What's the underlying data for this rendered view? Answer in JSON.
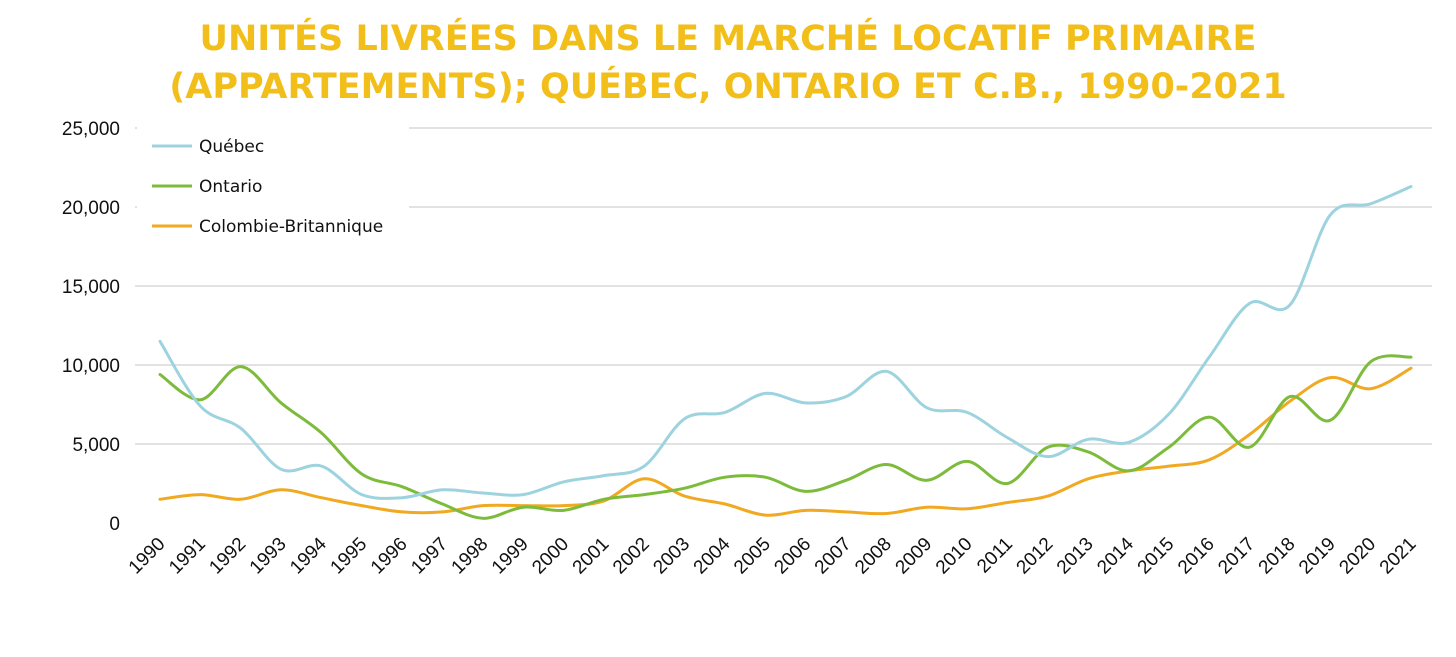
{
  "chart_data": {
    "type": "line",
    "title_line1": "UNITÉS LIVRÉES DANS LE MARCHÉ LOCATIF PRIMAIRE",
    "title_line2": "(APPARTEMENTS); QUÉBEC, ONTARIO ET C.B., 1990-2021",
    "xlabel": "",
    "ylabel": "",
    "ylim": [
      0,
      25000
    ],
    "yticks": [
      "0",
      "5,000",
      "10,000",
      "15,000",
      "20,000",
      "25,000"
    ],
    "ytick_values": [
      0,
      5000,
      10000,
      15000,
      20000,
      25000
    ],
    "grid": "horizontal",
    "legend_position": "top-left",
    "categories": [
      "1990",
      "1991",
      "1992",
      "1993",
      "1994",
      "1995",
      "1996",
      "1997",
      "1998",
      "1999",
      "2000",
      "2001",
      "2002",
      "2003",
      "2004",
      "2005",
      "2006",
      "2007",
      "2008",
      "2009",
      "2010",
      "2011",
      "2012",
      "2013",
      "2014",
      "2015",
      "2016",
      "2017",
      "2018",
      "2019",
      "2020",
      "2021"
    ],
    "series": [
      {
        "name": "Québec",
        "color": "#9DD3DF",
        "values": [
          11500,
          7400,
          6000,
          3400,
          3600,
          1800,
          1600,
          2100,
          1900,
          1800,
          2600,
          3000,
          3600,
          6600,
          7000,
          8200,
          7600,
          8000,
          9600,
          7300,
          7000,
          5400,
          4200,
          5300,
          5100,
          6900,
          10500,
          13900,
          13800,
          19500,
          20200,
          21300
        ]
      },
      {
        "name": "Ontario",
        "color": "#7DBB3C",
        "values": [
          9400,
          7800,
          9900,
          7600,
          5700,
          3100,
          2300,
          1200,
          300,
          1000,
          800,
          1500,
          1800,
          2200,
          2900,
          2900,
          2000,
          2700,
          3700,
          2700,
          3900,
          2500,
          4800,
          4500,
          3300,
          4800,
          6700,
          4800,
          8000,
          6500,
          10200,
          10500
        ]
      },
      {
        "name": "Colombie-Britannique",
        "color": "#F0A921",
        "values": [
          1500,
          1800,
          1500,
          2100,
          1600,
          1100,
          700,
          700,
          1100,
          1100,
          1100,
          1400,
          2800,
          1700,
          1200,
          500,
          800,
          700,
          600,
          1000,
          900,
          1300,
          1700,
          2800,
          3300,
          3600,
          4000,
          5600,
          7700,
          9200,
          8500,
          9800
        ]
      }
    ]
  }
}
